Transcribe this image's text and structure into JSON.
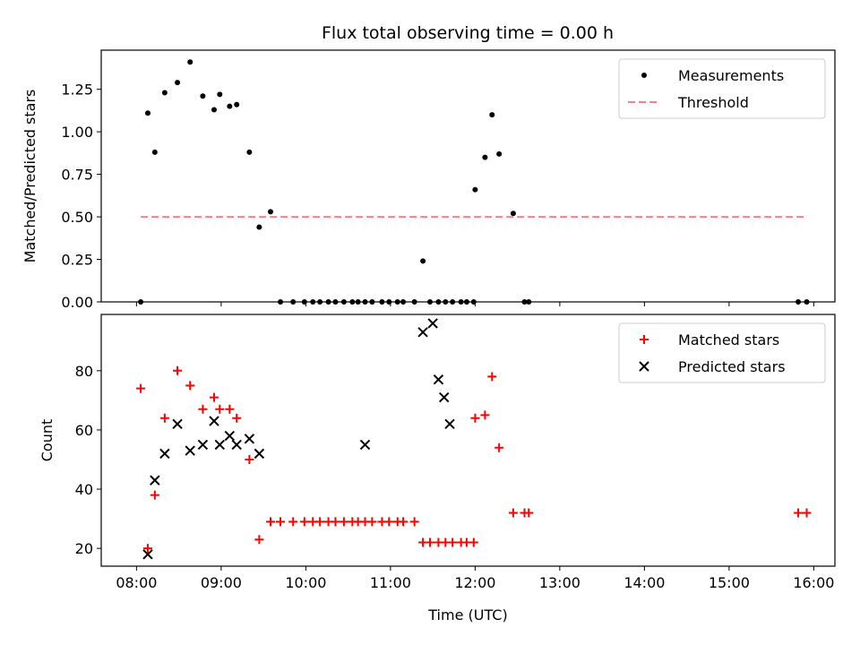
{
  "title": "Flux total observing time = 0.00 h",
  "chart_data": [
    {
      "type": "scatter",
      "ylabel": "Matched/Predicted stars",
      "ylim": [
        0,
        1.48
      ],
      "xlim": [
        "07:35",
        "16:15"
      ],
      "yticks": [
        "0.00",
        "0.25",
        "0.50",
        "0.75",
        "1.00",
        "1.25"
      ],
      "legend_position": "top-right",
      "series": [
        {
          "name": "Measurements",
          "marker": "dot",
          "color": "#000000",
          "x": [
            "08:03",
            "08:08",
            "08:13",
            "08:20",
            "08:29",
            "08:38",
            "08:47",
            "08:55",
            "08:59",
            "09:06",
            "09:11",
            "09:20",
            "09:27",
            "09:35",
            "09:42",
            "09:51",
            "09:59",
            "10:05",
            "10:10",
            "10:16",
            "10:21",
            "10:27",
            "10:33",
            "10:37",
            "10:42",
            "10:47",
            "10:54",
            "10:59",
            "11:05",
            "11:09",
            "11:17",
            "11:23",
            "11:28",
            "11:34",
            "11:39",
            "11:44",
            "11:50",
            "11:54",
            "11:59",
            "12:00",
            "12:07",
            "12:12",
            "12:17",
            "12:27",
            "12:35",
            "12:38",
            "15:49",
            "15:55"
          ],
          "y": [
            0.0,
            1.11,
            0.88,
            1.23,
            1.29,
            1.41,
            1.21,
            1.13,
            1.22,
            1.15,
            1.16,
            0.88,
            0.44,
            0.53,
            0.0,
            0.0,
            0.0,
            0.0,
            0.0,
            0.0,
            0.0,
            0.0,
            0.0,
            0.0,
            0.0,
            0.0,
            0.0,
            0.0,
            0.0,
            0.0,
            0.0,
            0.24,
            0.0,
            0.0,
            0.0,
            0.0,
            0.0,
            0.0,
            0.0,
            0.66,
            0.85,
            1.1,
            0.87,
            0.52,
            0.0,
            0.0,
            0.0,
            0.0
          ]
        },
        {
          "name": "Threshold",
          "style": "dashed",
          "color": "#ff7f7f",
          "x": [
            "08:03",
            "15:55"
          ],
          "y": [
            0.5,
            0.5
          ]
        }
      ]
    },
    {
      "type": "scatter",
      "xlabel": "Time (UTC)",
      "ylabel": "Count",
      "ylim": [
        14,
        99
      ],
      "xlim": [
        "07:35",
        "16:15"
      ],
      "yticks": [
        "20",
        "40",
        "60",
        "80"
      ],
      "xticks": [
        "08:00",
        "09:00",
        "10:00",
        "11:00",
        "12:00",
        "13:00",
        "14:00",
        "15:00",
        "16:00"
      ],
      "legend_position": "top-right",
      "series": [
        {
          "name": "Matched stars",
          "marker": "plus",
          "color": "#ff0000",
          "x": [
            "08:03",
            "08:08",
            "08:13",
            "08:20",
            "08:29",
            "08:38",
            "08:47",
            "08:55",
            "08:59",
            "09:06",
            "09:11",
            "09:20",
            "09:27",
            "09:35",
            "09:42",
            "09:51",
            "09:59",
            "10:05",
            "10:10",
            "10:16",
            "10:21",
            "10:27",
            "10:33",
            "10:37",
            "10:42",
            "10:47",
            "10:54",
            "10:59",
            "11:05",
            "11:09",
            "11:17",
            "11:23",
            "11:28",
            "11:34",
            "11:39",
            "11:44",
            "11:50",
            "11:54",
            "11:59",
            "12:00",
            "12:07",
            "12:12",
            "12:17",
            "12:27",
            "12:35",
            "12:38",
            "15:49",
            "15:55"
          ],
          "y": [
            74,
            20,
            38,
            64,
            80,
            75,
            67,
            71,
            67,
            67,
            64,
            50,
            23,
            29,
            29,
            29,
            29,
            29,
            29,
            29,
            29,
            29,
            29,
            29,
            29,
            29,
            29,
            29,
            29,
            29,
            29,
            22,
            22,
            22,
            22,
            22,
            22,
            22,
            22,
            64,
            65,
            78,
            54,
            32,
            32,
            32,
            32,
            32
          ]
        },
        {
          "name": "Predicted stars",
          "marker": "x",
          "color": "#000000",
          "x": [
            "08:08",
            "08:13",
            "08:20",
            "08:29",
            "08:38",
            "08:47",
            "08:55",
            "08:59",
            "09:06",
            "09:11",
            "09:20",
            "09:27",
            "10:42",
            "11:23",
            "11:30",
            "11:34",
            "11:38",
            "11:42"
          ],
          "y": [
            18,
            43,
            52,
            62,
            53,
            55,
            63,
            55,
            58,
            55,
            57,
            52,
            55,
            93,
            96,
            77,
            71,
            62
          ]
        }
      ]
    }
  ]
}
